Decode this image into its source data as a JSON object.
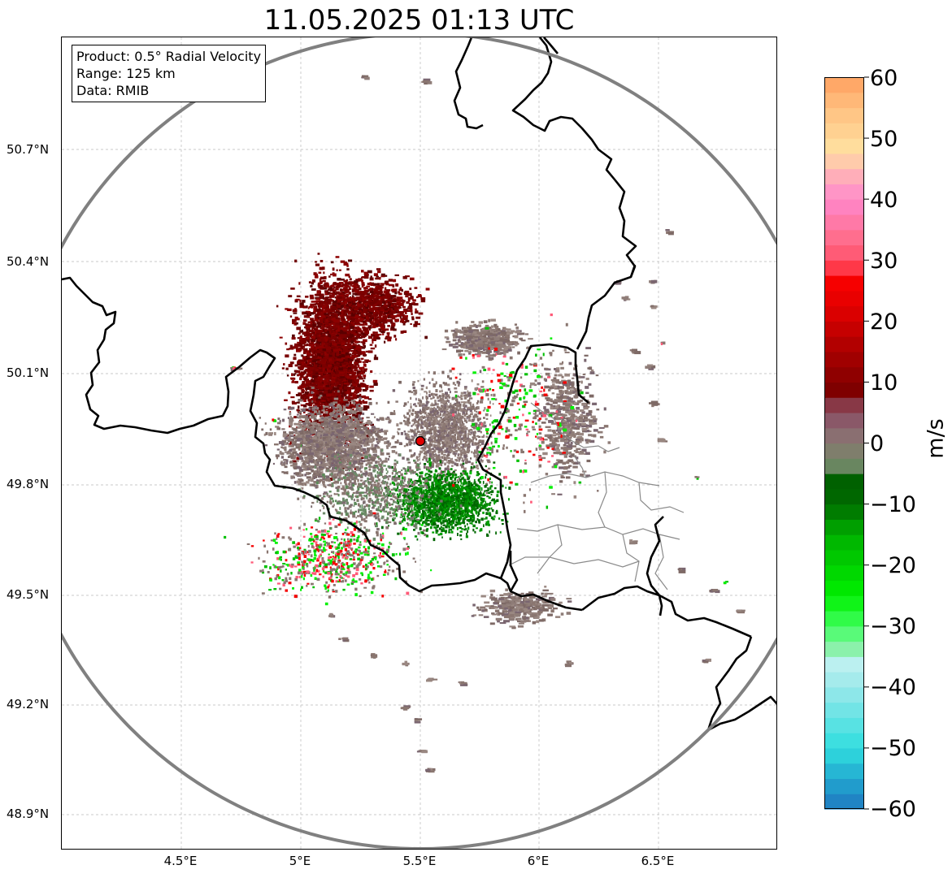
{
  "title": "11.05.2025 01:13 UTC",
  "info": {
    "product": "Product: 0.5° Radial Velocity",
    "range": "Range: 125 km",
    "data": "Data: RMIB"
  },
  "lat_ticks": [
    "50.7°N",
    "50.4°N",
    "50.1°N",
    "49.8°N",
    "49.5°N",
    "49.2°N",
    "48.9°N"
  ],
  "lon_ticks": [
    "4.5°E",
    "5°E",
    "5.5°E",
    "6°E",
    "6.5°E"
  ],
  "colorbar": {
    "unit": "m/s",
    "labels": [
      "60",
      "50",
      "40",
      "30",
      "20",
      "10",
      "0",
      "−10",
      "−20",
      "−30",
      "−40",
      "−50",
      "−60"
    ],
    "vmin": -60,
    "vmax": 60,
    "colors": {
      "strong_receding": "#ff9f5a",
      "receding_pink": "#ff5a78",
      "receding_red": "#f50000",
      "receding_dark": "#7a0000",
      "near_zero": "#8a7670",
      "approaching_dark": "#006400",
      "approaching_bright": "#00f000",
      "approaching_cyan": "#30dede",
      "strong_approaching": "#1f78c0"
    }
  },
  "radar_site": {
    "lon": 5.505,
    "lat": 49.914,
    "color": "#e00000"
  },
  "range_ring_color": "#808080"
}
